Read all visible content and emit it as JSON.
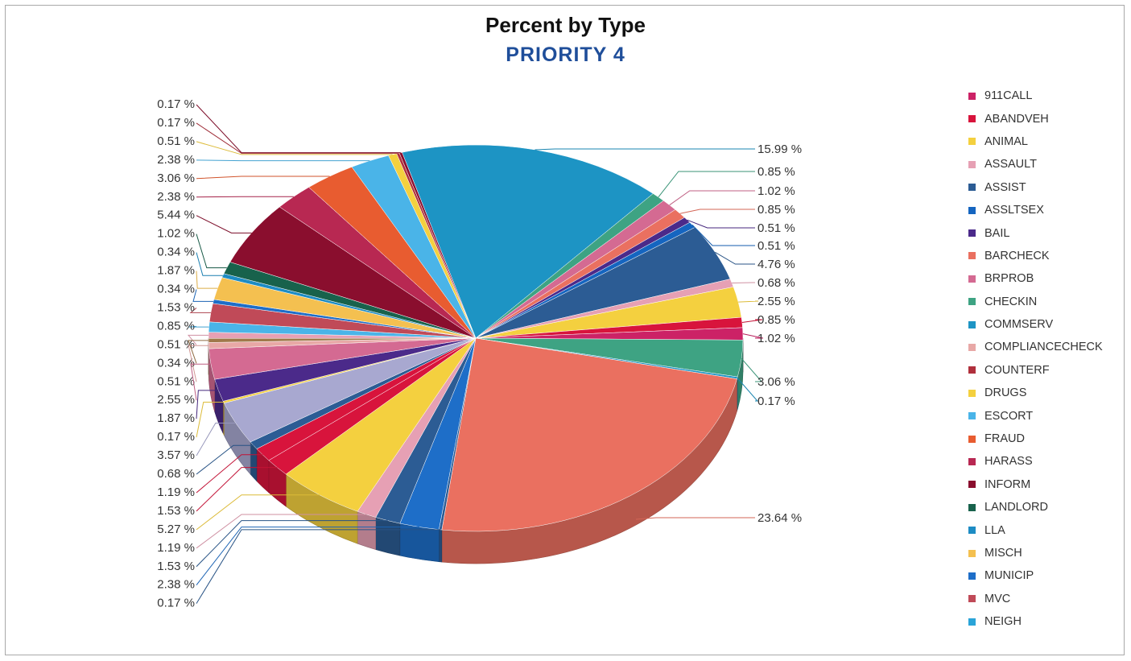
{
  "chart_data": {
    "type": "pie",
    "title": "Percent by Type",
    "subtitle": "PRIORITY 4",
    "unit": "%",
    "legend": [
      "911CALL",
      "ABANDVEH",
      "ANIMAL",
      "ASSAULT",
      "ASSIST",
      "ASSLTSEX",
      "BAIL",
      "BARCHECK",
      "BRPROB",
      "CHECKIN",
      "COMMSERV",
      "COMPLIANCECHECK",
      "COUNTERF",
      "DRUGS",
      "ESCORT",
      "FRAUD",
      "HARASS",
      "INFORM",
      "LANDLORD",
      "LLA",
      "MISCH",
      "MUNICIP",
      "MVC",
      "NEIGH"
    ],
    "legend_colors": [
      "#cc2266",
      "#d8143c",
      "#f4d03f",
      "#e6a0b4",
      "#2c5c94",
      "#1565c0",
      "#4b2a8a",
      "#ea7060",
      "#d46a92",
      "#3ea383",
      "#1d94c4",
      "#e8a8a6",
      "#b0303c",
      "#f4d03f",
      "#4ab4e8",
      "#e85c30",
      "#b82852",
      "#8a0e2e",
      "#18624c",
      "#1d8cc4",
      "#f4c050",
      "#1e6ec8",
      "#c04a58",
      "#2aa4d8"
    ],
    "slices": [
      {
        "label": "15.99 %",
        "value": 15.99,
        "color": "#1d94c4"
      },
      {
        "label": "0.85 %",
        "value": 0.85,
        "color": "#3ea383"
      },
      {
        "label": "1.02 %",
        "value": 1.02,
        "color": "#d46a92"
      },
      {
        "label": "0.85 %",
        "value": 0.85,
        "color": "#ea7060"
      },
      {
        "label": "0.51 %",
        "value": 0.51,
        "color": "#4b2a8a"
      },
      {
        "label": "0.51 %",
        "value": 0.51,
        "color": "#1565c0"
      },
      {
        "label": "4.76 %",
        "value": 4.76,
        "color": "#2c5c94"
      },
      {
        "label": "0.68 %",
        "value": 0.68,
        "color": "#e6a0b4"
      },
      {
        "label": "2.55 %",
        "value": 2.55,
        "color": "#f4d03f"
      },
      {
        "label": "0.85 %",
        "value": 0.85,
        "color": "#d8143c"
      },
      {
        "label": "1.02 %",
        "value": 1.02,
        "color": "#cc2266"
      },
      {
        "label": "3.06 %",
        "value": 3.06,
        "color": "#3ea383"
      },
      {
        "label": "0.17 %",
        "value": 0.17,
        "color": "#1d94c4"
      },
      {
        "label": "23.64 %",
        "value": 23.64,
        "color": "#ea7060"
      },
      {
        "label": "0.17 %",
        "value": 0.17,
        "color": "#2c5c94"
      },
      {
        "label": "2.38 %",
        "value": 2.38,
        "color": "#1e6ec8"
      },
      {
        "label": "1.53 %",
        "value": 1.53,
        "color": "#2c5c94"
      },
      {
        "label": "1.19 %",
        "value": 1.19,
        "color": "#e6a0b4"
      },
      {
        "label": "5.27 %",
        "value": 5.27,
        "color": "#f4d03f"
      },
      {
        "label": "1.53 %",
        "value": 1.53,
        "color": "#d8143c"
      },
      {
        "label": "1.19 %",
        "value": 1.19,
        "color": "#d8143c"
      },
      {
        "label": "0.68 %",
        "value": 0.68,
        "color": "#2c5c94"
      },
      {
        "label": "3.57 %",
        "value": 3.57,
        "color": "#a8a8d0"
      },
      {
        "label": "0.17 %",
        "value": 0.17,
        "color": "#f4d03f"
      },
      {
        "label": "1.87 %",
        "value": 1.87,
        "color": "#4b2a8a"
      },
      {
        "label": "2.55 %",
        "value": 2.55,
        "color": "#d46a92"
      },
      {
        "label": "0.51 %",
        "value": 0.51,
        "color": "#e8a8a6"
      },
      {
        "label": "0.34 %",
        "value": 0.34,
        "color": "#a0784a"
      },
      {
        "label": "0.51 %",
        "value": 0.51,
        "color": "#e6a0b4"
      },
      {
        "label": "0.85 %",
        "value": 0.85,
        "color": "#4ab4e8"
      },
      {
        "label": "1.53 %",
        "value": 1.53,
        "color": "#c04a58"
      },
      {
        "label": "0.34 %",
        "value": 0.34,
        "color": "#1e6ec8"
      },
      {
        "label": "1.87 %",
        "value": 1.87,
        "color": "#f4c050"
      },
      {
        "label": "0.34 %",
        "value": 0.34,
        "color": "#1d8cc4"
      },
      {
        "label": "1.02 %",
        "value": 1.02,
        "color": "#18624c"
      },
      {
        "label": "5.44 %",
        "value": 5.44,
        "color": "#8a0e2e"
      },
      {
        "label": "2.38 %",
        "value": 2.38,
        "color": "#b82852"
      },
      {
        "label": "3.06 %",
        "value": 3.06,
        "color": "#e85c30"
      },
      {
        "label": "2.38 %",
        "value": 2.38,
        "color": "#4ab4e8"
      },
      {
        "label": "0.51 %",
        "value": 0.51,
        "color": "#f4d03f"
      },
      {
        "label": "0.17 %",
        "value": 0.17,
        "color": "#b0303c"
      },
      {
        "label": "0.17 %",
        "value": 0.17,
        "color": "#8a0e2e"
      }
    ]
  }
}
